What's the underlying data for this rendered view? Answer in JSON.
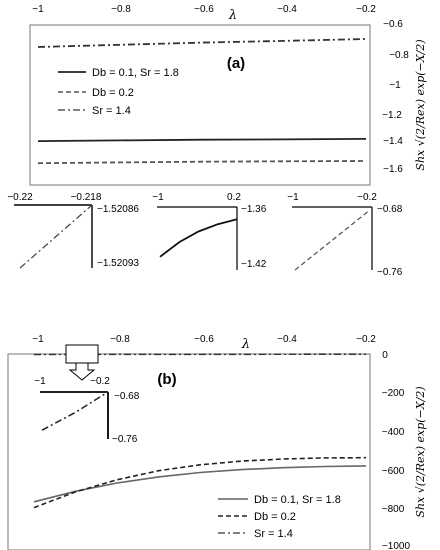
{
  "chart_data": [
    {
      "id": "a",
      "type": "line",
      "panel_label": "(a)",
      "xlabel": "λ",
      "ylabel": "Shx √(2/Rex) exp(−X/2)",
      "xlim": [
        -1,
        -0.2
      ],
      "ylim": [
        -1.6,
        -0.6
      ],
      "x_ticks": [
        "−1",
        "−0.8",
        "−0.6",
        "−0.4",
        "−0.2"
      ],
      "y_ticks": [
        "−0.6",
        "−0.8",
        "−1",
        "−1.2",
        "−1.4",
        "−1.6"
      ],
      "x_axis_position": "top",
      "y_axis_position": "right",
      "legend_position": "left",
      "series": [
        {
          "name": "Db = 0.1, Sr = 1.8",
          "style": "solid",
          "x": [
            -1,
            -0.8,
            -0.6,
            -0.4,
            -0.2
          ],
          "y": [
            -1.39,
            -1.385,
            -1.38,
            -1.378,
            -1.375
          ]
        },
        {
          "name": "Db = 0.2",
          "style": "dashed",
          "x": [
            -1,
            -0.8,
            -0.6,
            -0.4,
            -0.2
          ],
          "y": [
            -1.54,
            -1.535,
            -1.53,
            -1.527,
            -1.525
          ]
        },
        {
          "name": "Sr = 1.4",
          "style": "dashdot",
          "x": [
            -1,
            -0.8,
            -0.6,
            -0.4,
            -0.2
          ],
          "y": [
            -0.75,
            -0.735,
            -0.72,
            -0.708,
            -0.695
          ]
        }
      ]
    },
    {
      "id": "a-inset-1",
      "type": "line",
      "xlim": [
        -0.22,
        -0.218
      ],
      "ylim": [
        -1.52093,
        -1.52086
      ],
      "x_ticks": [
        "−0.22",
        "−0.218"
      ],
      "y_ticks": [
        "−1.52086",
        "−1.52093"
      ],
      "series": [
        {
          "style": "dashdot",
          "x": [
            -0.22,
            -0.218
          ],
          "y": [
            -1.52093,
            -1.52086
          ]
        }
      ]
    },
    {
      "id": "a-inset-2",
      "type": "line",
      "xlim": [
        -1,
        0.2
      ],
      "ylim": [
        -1.42,
        -1.36
      ],
      "x_ticks": [
        "−1",
        "0.2"
      ],
      "y_ticks": [
        "−1.36",
        "−1.42"
      ],
      "series": [
        {
          "style": "solid",
          "x": [
            -1,
            -0.7,
            -0.4,
            -0.1,
            0.2
          ],
          "y": [
            -1.41,
            -1.392,
            -1.379,
            -1.37,
            -1.364
          ]
        }
      ]
    },
    {
      "id": "a-inset-3",
      "type": "line",
      "xlim": [
        -1,
        -0.2
      ],
      "ylim": [
        -0.76,
        -0.68
      ],
      "x_ticks": [
        "−1",
        "−0.2"
      ],
      "y_ticks": [
        "−0.68",
        "−0.76"
      ],
      "series": [
        {
          "style": "dashed",
          "x": [
            -1,
            -0.2
          ],
          "y": [
            -0.76,
            -0.68
          ]
        }
      ]
    },
    {
      "id": "b",
      "type": "line",
      "panel_label": "(b)",
      "xlabel": "λ",
      "ylabel": "Shx √(2/Rex) exp(−X/2)",
      "xlim": [
        -1,
        -0.2
      ],
      "ylim": [
        -1000,
        0
      ],
      "x_ticks": [
        "−1",
        "−0.8",
        "−0.6",
        "−0.4",
        "−0.2"
      ],
      "y_ticks": [
        "0",
        "−200",
        "−400",
        "−600",
        "−800",
        "−1000"
      ],
      "x_axis_position": "top",
      "y_axis_position": "right",
      "legend_position": "bottom-right",
      "series": [
        {
          "name": "Db = 0.1, Sr = 1.8",
          "style": "solid",
          "x": [
            -1,
            -0.9,
            -0.8,
            -0.7,
            -0.6,
            -0.5,
            -0.4,
            -0.3,
            -0.2
          ],
          "y": [
            -770,
            -715,
            -672,
            -640,
            -617,
            -602,
            -592,
            -586,
            -583
          ]
        },
        {
          "name": "Db = 0.2",
          "style": "dashed",
          "x": [
            -1,
            -0.9,
            -0.8,
            -0.7,
            -0.6,
            -0.5,
            -0.4,
            -0.3,
            -0.2
          ],
          "y": [
            -800,
            -718,
            -655,
            -608,
            -577,
            -558,
            -547,
            -541,
            -540
          ]
        },
        {
          "name": "Sr = 1.4",
          "style": "dashdot",
          "x": [
            -1,
            -0.2
          ],
          "y": [
            -2,
            -1
          ]
        }
      ]
    },
    {
      "id": "b-inset",
      "type": "line",
      "xlim": [
        -1,
        -0.2
      ],
      "ylim": [
        -0.76,
        -0.68
      ],
      "x_ticks": [
        "−1",
        "−0.2"
      ],
      "y_ticks": [
        "−0.68",
        "−0.76"
      ],
      "series": [
        {
          "style": "dashdot",
          "x": [
            -1,
            -0.6,
            -0.2
          ],
          "y": [
            -0.745,
            -0.715,
            -0.68
          ]
        }
      ]
    }
  ]
}
